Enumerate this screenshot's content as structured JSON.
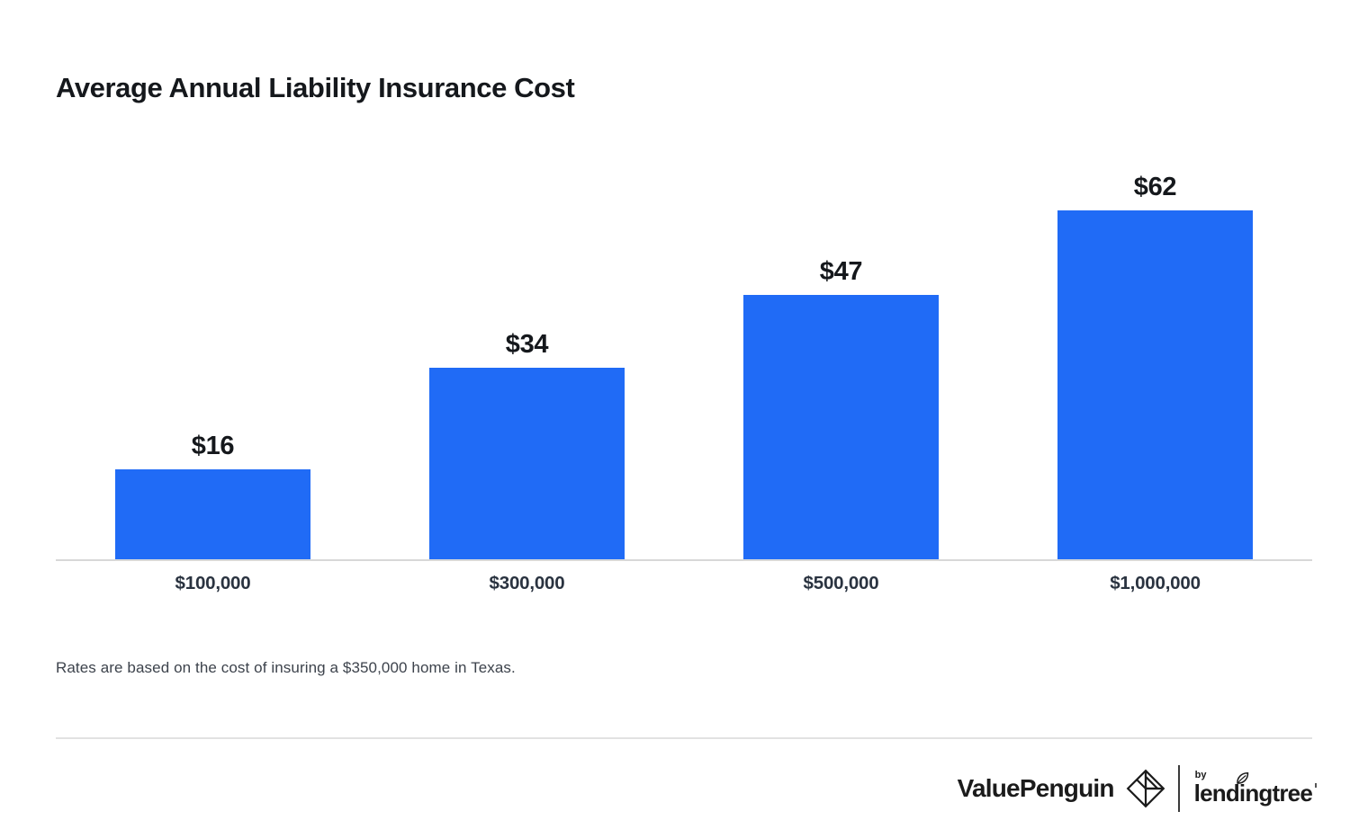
{
  "header": {
    "title": "Average Annual Liability Insurance Cost"
  },
  "chart_data": {
    "type": "bar",
    "title": "Average Annual Liability Insurance Cost",
    "categories": [
      "$100,000",
      "$300,000",
      "$500,000",
      "$1,000,000"
    ],
    "values": [
      16,
      34,
      47,
      62
    ],
    "value_labels": [
      "$16",
      "$34",
      "$47",
      "$62"
    ],
    "xlabel": "",
    "ylabel": "",
    "ylim": [
      0,
      65
    ],
    "grid": false,
    "legend": "none",
    "bar_color": "#206BF6"
  },
  "footnote": {
    "text": "Rates are based on the cost of insuring a $350,000 home in Texas."
  },
  "footer": {
    "brand": "ValuePenguin",
    "brand_mark": "origami-penguin-diamond-icon",
    "by_label": "by",
    "partner_brand": "lendingtree",
    "partner_mark": "leaf-icon"
  },
  "colors": {
    "bar": "#206BF6",
    "axis_line": "#D8D8D8",
    "divider": "#E2E2E2",
    "title_text": "#15181C",
    "value_label_text": "#15181C",
    "tick_label_text": "#2A3340",
    "footnote_text": "#3D434C",
    "logo_text": "#1B1B1B"
  }
}
